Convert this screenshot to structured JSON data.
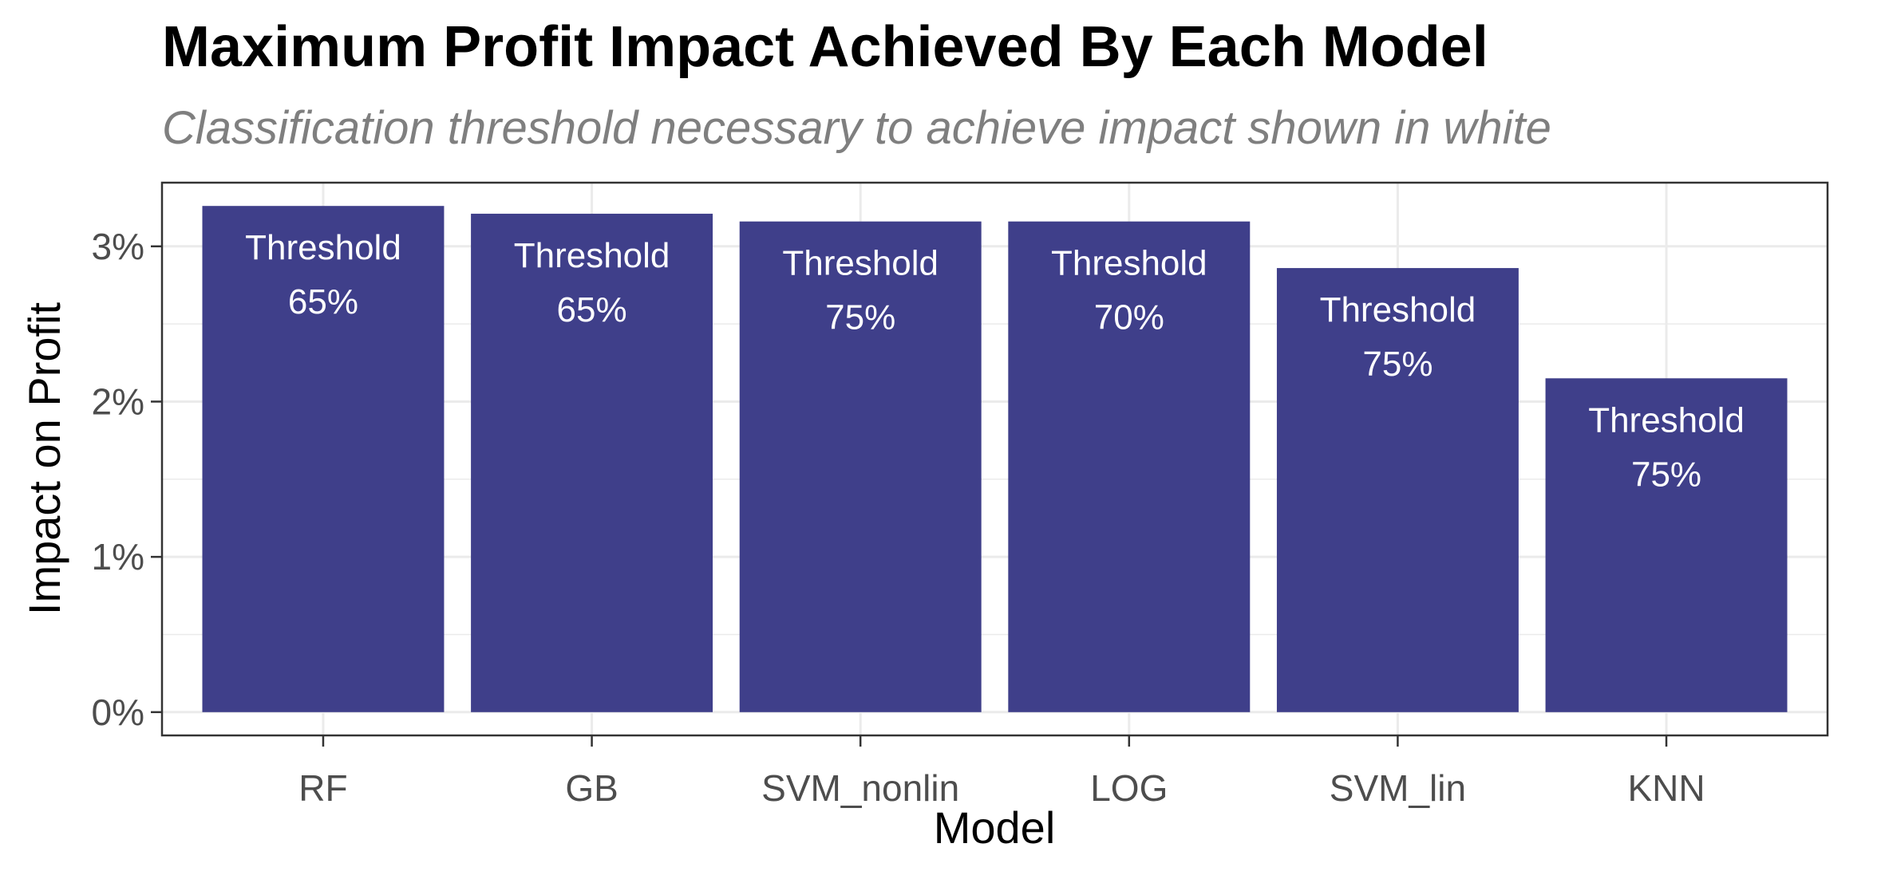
{
  "chart_data": {
    "type": "bar",
    "title": "Maximum Profit Impact Achieved By Each Model",
    "subtitle": "Classification threshold necessary to achieve impact shown in white",
    "xlabel": "Model",
    "ylabel": "Impact on Profit",
    "categories": [
      "RF",
      "GB",
      "SVM_nonlin",
      "LOG",
      "SVM_lin",
      "KNN"
    ],
    "values": [
      3.26,
      3.21,
      3.16,
      3.16,
      2.86,
      2.15
    ],
    "bar_labels": [
      [
        "Threshold",
        "65%"
      ],
      [
        "Threshold",
        "65%"
      ],
      [
        "Threshold",
        "75%"
      ],
      [
        "Threshold",
        "70%"
      ],
      [
        "Threshold",
        "75%"
      ],
      [
        "Threshold",
        "75%"
      ]
    ],
    "y_ticks": [
      0,
      1,
      2,
      3
    ],
    "y_tick_labels": [
      "0%",
      "1%",
      "2%",
      "3%"
    ],
    "ylim": [
      -0.15,
      3.41
    ],
    "grid": true,
    "bar_color": "#3f3f8a",
    "grid_color": "#ebebeb",
    "panel_border_color": "#333333"
  }
}
